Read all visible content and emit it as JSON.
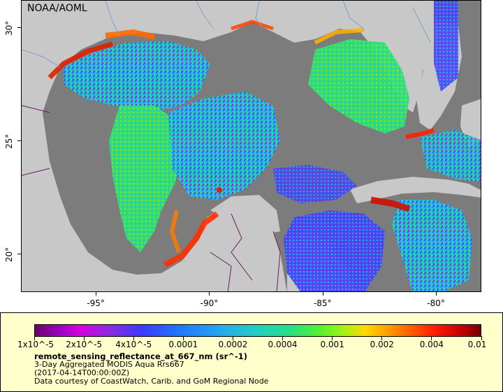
{
  "credit": "NOAA/AOML",
  "map": {
    "lon_range": [
      -98.3,
      -78.0
    ],
    "lat_range": [
      18.3,
      31.2
    ],
    "lon_ticks": [
      {
        "lon": -95,
        "label": "-95°"
      },
      {
        "lon": -90,
        "label": "-90°"
      },
      {
        "lon": -85,
        "label": "-85°"
      },
      {
        "lon": -80,
        "label": "-80°"
      }
    ],
    "lat_ticks": [
      {
        "lat": 30,
        "label": "30°"
      },
      {
        "lat": 25,
        "label": "25°"
      },
      {
        "lat": 20,
        "label": "20°"
      }
    ],
    "colors": {
      "land": "#c8c8c8",
      "no_data": "#7c7c7c",
      "border": "#6a1a6a",
      "river": "#7aa0c8"
    }
  },
  "legend": {
    "colorbar_labels": [
      "1x10^-5",
      "2x10^-5",
      "4x10^-5",
      "0.0001",
      "0.0002",
      "0.0004",
      "0.001",
      "0.002",
      "0.004",
      "0.01"
    ],
    "variable": "remote_sensing_reflectance_at_667_nm (sr^-1)",
    "description": "3-Day Aggregated MODIS Aqua Rrs667",
    "time": "(2017-04-14T00:00:00Z)",
    "courtesy": "Data courtesy of CoastWatch, Carib. and GoM Regional Node"
  }
}
